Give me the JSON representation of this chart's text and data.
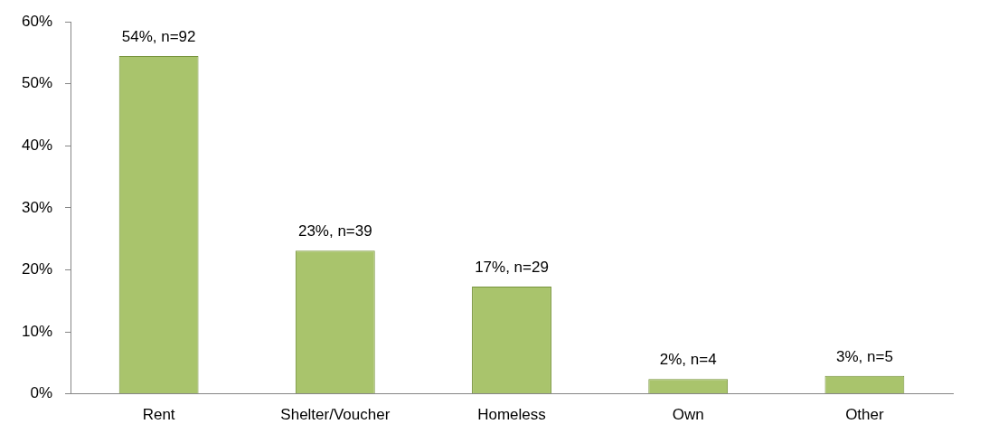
{
  "chart_data": {
    "type": "bar",
    "categories": [
      "Rent",
      "Shelter/Voucher",
      "Homeless",
      "Own",
      "Other"
    ],
    "values": [
      54.5,
      23.1,
      17.3,
      2.4,
      2.9
    ],
    "value_labels": [
      "54%, n=92",
      "23%, n=39",
      "17%, n=29",
      "2%, n=4",
      "3%, n=5"
    ],
    "color": "#a9c46c",
    "ylim": [
      0,
      60
    ],
    "yticks": [
      {
        "value": 0,
        "label": "0%"
      },
      {
        "value": 10,
        "label": "10%"
      },
      {
        "value": 20,
        "label": "20%"
      },
      {
        "value": 30,
        "label": "30%"
      },
      {
        "value": 40,
        "label": "40%"
      },
      {
        "value": 50,
        "label": "50%"
      },
      {
        "value": 60,
        "label": "60%"
      }
    ],
    "grid": false,
    "legend": false
  }
}
